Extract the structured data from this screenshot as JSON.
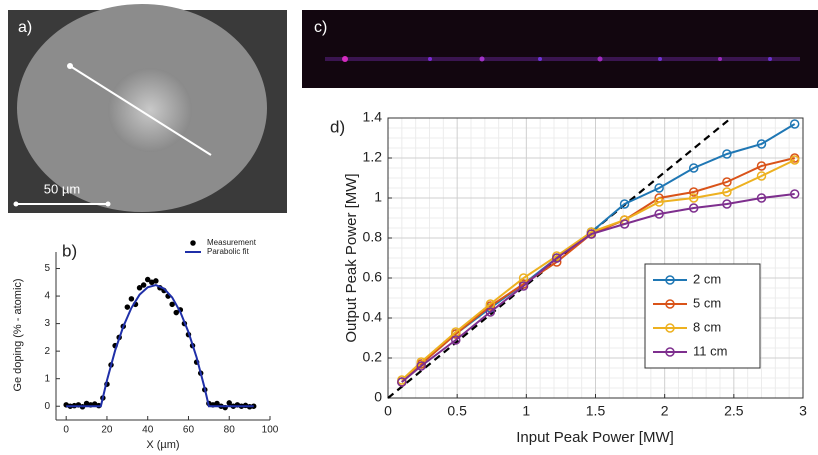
{
  "panels": {
    "a": {
      "label": "a)",
      "scale_bar": "50 µm"
    },
    "c": {
      "label": "c)"
    }
  },
  "chart_data": [
    {
      "type": "line",
      "panel_label": "b)",
      "xlabel": "X (µm)",
      "ylabel": "Ge doping (% - atomic)",
      "xlim": [
        -5,
        100
      ],
      "xticks": [
        0,
        20,
        40,
        60,
        80,
        100
      ],
      "ylim": [
        -0.5,
        5.6
      ],
      "yticks": [
        0,
        1,
        2,
        3,
        4,
        5
      ],
      "grid": false,
      "box": false,
      "legend": "upper right",
      "series": [
        {
          "name": "Measurement",
          "color": "#000000",
          "marker": "dot",
          "line": false,
          "x": [
            0,
            2,
            4,
            6,
            8,
            10,
            12,
            14,
            16,
            18,
            20,
            22,
            24,
            26,
            28,
            30,
            32,
            34,
            36,
            38,
            40,
            42,
            44,
            46,
            48,
            50,
            52,
            54,
            56,
            58,
            60,
            62,
            64,
            66,
            68,
            70,
            72,
            74,
            76,
            78,
            80,
            82,
            84,
            86,
            88,
            90,
            92
          ],
          "values": [
            0.05,
            0,
            0.02,
            0.05,
            -0.02,
            0.1,
            0.05,
            0.08,
            0.02,
            0.3,
            0.8,
            1.5,
            2.2,
            2.5,
            2.9,
            3.6,
            3.9,
            3.7,
            4.3,
            4.4,
            4.6,
            4.5,
            4.55,
            4.3,
            4.2,
            4.0,
            3.7,
            3.4,
            3.5,
            3.0,
            2.6,
            2.2,
            1.6,
            1.2,
            0.6,
            0.1,
            0.05,
            0.1,
            0.0,
            -0.05,
            0.12,
            0.0,
            0.05,
            0,
            0.03,
            -0.02,
            0
          ]
        },
        {
          "name": "Parabolic fit",
          "color": "#1f2fa8",
          "marker": null,
          "line": true,
          "x": [
            0,
            17,
            20,
            24,
            28,
            32,
            36,
            40,
            44,
            48,
            52,
            56,
            60,
            64,
            68,
            70,
            92
          ],
          "values": [
            0,
            0,
            0.94,
            2.02,
            2.89,
            3.57,
            4.05,
            4.32,
            4.4,
            4.27,
            3.95,
            3.42,
            2.69,
            1.77,
            0.64,
            0,
            0
          ]
        }
      ]
    },
    {
      "type": "line",
      "panel_label": "d)",
      "xlabel": "Input Peak Power [MW]",
      "ylabel": "Output Peak Power [MW]",
      "xlim": [
        0,
        3
      ],
      "xticks": [
        0,
        0.5,
        1,
        1.5,
        2,
        2.5,
        3
      ],
      "ylim": [
        0,
        1.4
      ],
      "yticks": [
        0,
        0.2,
        0.4,
        0.6,
        0.8,
        1,
        1.2,
        1.4
      ],
      "grid": true,
      "minor_grid": [
        5,
        4
      ],
      "box": true,
      "legend": "lower right",
      "x": [
        0.1,
        0.24,
        0.49,
        0.74,
        0.98,
        1.22,
        1.47,
        1.71,
        1.96,
        2.21,
        2.45,
        2.7,
        2.94
      ],
      "series": [
        {
          "color": "#000000",
          "marker": null,
          "line": true,
          "dash": true,
          "x": [
            0,
            2.48
          ],
          "values": [
            0,
            1.4
          ]
        },
        {
          "name": "2 cm",
          "color": "#1f77b4",
          "marker": "circle",
          "line": true,
          "values": [
            0.08,
            0.17,
            0.32,
            0.45,
            0.57,
            0.7,
            0.83,
            0.97,
            1.05,
            1.15,
            1.22,
            1.27,
            1.37
          ]
        },
        {
          "name": "5 cm",
          "color": "#d95319",
          "marker": "circle",
          "line": true,
          "values": [
            0.08,
            0.17,
            0.32,
            0.46,
            0.57,
            0.68,
            0.82,
            0.89,
            1.0,
            1.03,
            1.08,
            1.16,
            1.2
          ]
        },
        {
          "name": "8 cm",
          "color": "#edb120",
          "marker": "circle",
          "line": true,
          "values": [
            0.09,
            0.18,
            0.33,
            0.47,
            0.6,
            0.71,
            0.83,
            0.89,
            0.98,
            1.0,
            1.03,
            1.11,
            1.19
          ]
        },
        {
          "name": "11 cm",
          "color": "#7e2f8e",
          "marker": "circle",
          "line": true,
          "values": [
            0.08,
            0.16,
            0.29,
            0.43,
            0.56,
            0.7,
            0.82,
            0.87,
            0.92,
            0.95,
            0.97,
            1.0,
            1.02
          ]
        }
      ]
    }
  ]
}
